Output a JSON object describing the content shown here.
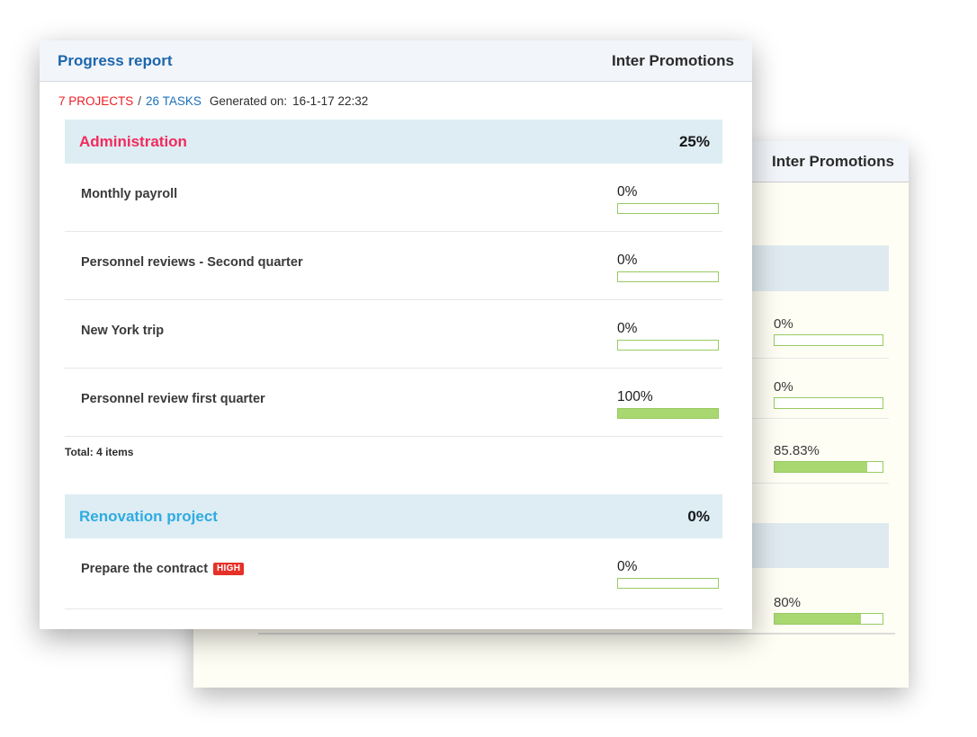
{
  "colors": {
    "header-bg": "#f2f5f9",
    "title-blue": "#1b66ad",
    "link-blue": "#1c70b8",
    "red": "#ee1d23",
    "pink": "#f32a5e",
    "cyan": "#30abe2",
    "section-blue": "#ddedf3",
    "bar-border": "#97cb63",
    "bar-fill": "#a9d770",
    "badge-red": "#e63128",
    "divider": "#e7e7e5",
    "back-body": "#fffef4",
    "back-band": "#dfeaf0",
    "text-dark": "#2e2e2e"
  },
  "front_report": {
    "title": "Progress report",
    "company": "Inter Promotions",
    "meta": {
      "projects_label": "7 PROJECTS",
      "separator": "/",
      "tasks_label": "26 TASKS",
      "generated_label": "Generated on:",
      "generated_value": "16-1-17 22:32"
    },
    "sections": [
      {
        "name": "Administration",
        "percent": "25%",
        "tasks": [
          {
            "name": "Monthly payroll",
            "percent": "0%",
            "progress": 0
          },
          {
            "name": "Personnel reviews - Second quarter",
            "percent": "0%",
            "progress": 0
          },
          {
            "name": "New York trip",
            "percent": "0%",
            "progress": 0
          },
          {
            "name": "Personnel review first quarter",
            "percent": "100%",
            "progress": 100
          }
        ],
        "total": "Total: 4 items"
      },
      {
        "name": "Renovation project",
        "percent": "0%",
        "tasks": [
          {
            "name": "Prepare the contract",
            "badge": "HIGH",
            "percent": "0%",
            "progress": 0
          }
        ]
      }
    ]
  },
  "back_report": {
    "company": "Inter Promotions",
    "visible_tasks": [
      {
        "percent": "0%",
        "progress": 0
      },
      {
        "percent": "0%",
        "progress": 0
      },
      {
        "percent": "85.83%",
        "progress": 85.83
      },
      {
        "percent": "80%",
        "progress": 80
      }
    ]
  }
}
